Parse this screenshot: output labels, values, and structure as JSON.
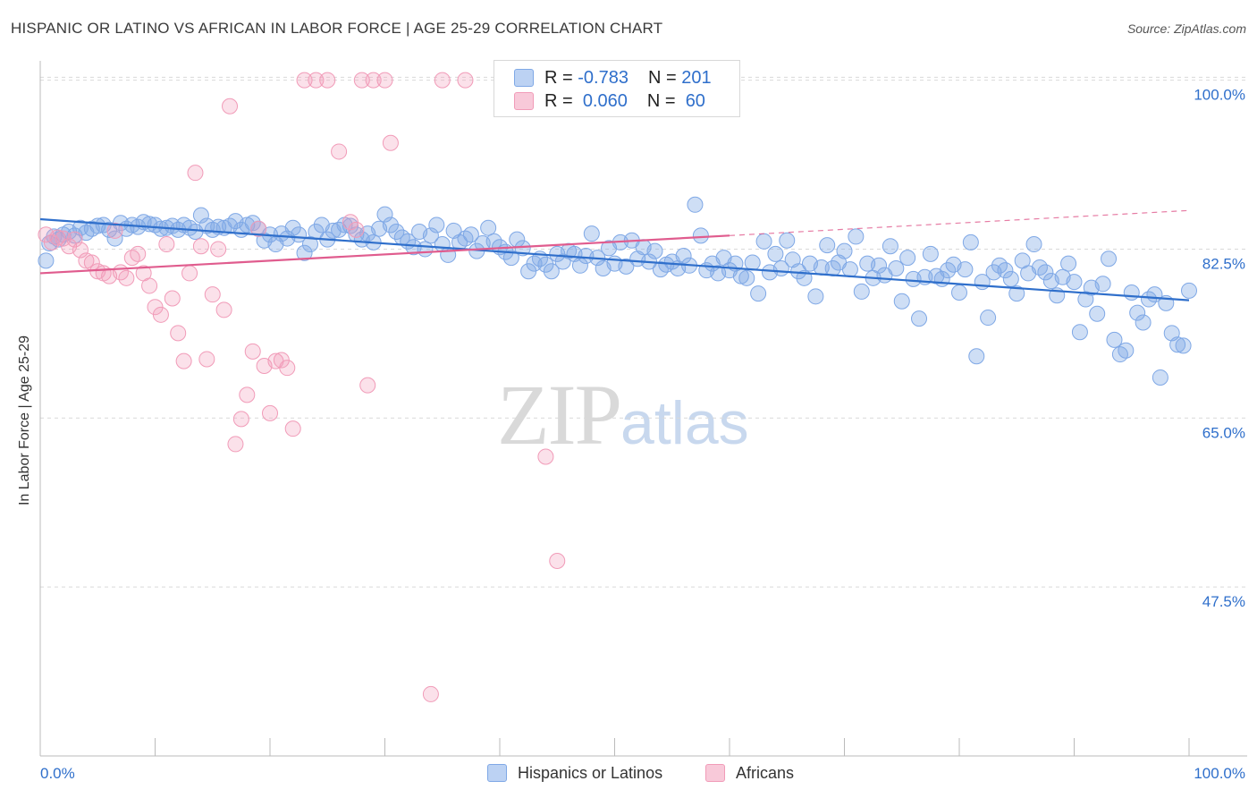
{
  "header": {
    "title": "HISPANIC OR LATINO VS AFRICAN IN LABOR FORCE | AGE 25-29 CORRELATION CHART",
    "source": "Source: ZipAtlas.com"
  },
  "watermark": {
    "zip": "ZIP",
    "atlas": "atlas"
  },
  "legend": {
    "hispanic": {
      "r_label": "R =",
      "r_value": "-0.783",
      "n_label": "N =",
      "n_value": "201",
      "color": "#7fa8e6"
    },
    "african": {
      "r_label": "R =",
      "r_value": "0.060",
      "n_label": "N =",
      "n_value": "60",
      "color": "#f19bb8"
    }
  },
  "bottom_legend": {
    "hispanic": "Hispanics or Latinos",
    "african": "Africans"
  },
  "chart_data": {
    "type": "scatter",
    "title": "HISPANIC OR LATINO VS AFRICAN IN LABOR FORCE | AGE 25-29 CORRELATION CHART",
    "xlabel": "",
    "ylabel": "In Labor Force | Age 25-29",
    "xlim": [
      0,
      100
    ],
    "ylim": [
      30,
      102
    ],
    "x_tick_labels": [
      "0.0%",
      "100.0%"
    ],
    "y_ticks": [
      47.5,
      65.0,
      82.5,
      100.0
    ],
    "y_tick_labels": [
      "47.5%",
      "65.0%",
      "82.5%",
      "100.0%"
    ],
    "grid": true,
    "legend_position": "top-center",
    "series": [
      {
        "name": "Hispanics or Latinos",
        "color": "#7fa8e6",
        "line_color": "#2f6fcb",
        "trend": {
          "x": [
            0,
            100
          ],
          "y": [
            85.6,
            77.2
          ]
        },
        "points": [
          [
            0.5,
            81.3
          ],
          [
            0.8,
            83.1
          ],
          [
            1.2,
            83.8
          ],
          [
            1.6,
            83.5
          ],
          [
            2.0,
            84.0
          ],
          [
            2.5,
            84.3
          ],
          [
            3.0,
            83.9
          ],
          [
            3.5,
            84.7
          ],
          [
            4.0,
            84.2
          ],
          [
            4.5,
            84.6
          ],
          [
            5.0,
            84.9
          ],
          [
            5.5,
            85.0
          ],
          [
            6.0,
            84.5
          ],
          [
            6.5,
            83.6
          ],
          [
            7.0,
            85.2
          ],
          [
            7.5,
            84.6
          ],
          [
            8.0,
            85.0
          ],
          [
            8.5,
            84.8
          ],
          [
            9.0,
            85.3
          ],
          [
            9.5,
            85.1
          ],
          [
            10.0,
            85.0
          ],
          [
            10.5,
            84.6
          ],
          [
            11.0,
            84.7
          ],
          [
            11.5,
            84.9
          ],
          [
            12.0,
            84.5
          ],
          [
            12.5,
            85.0
          ],
          [
            13.0,
            84.7
          ],
          [
            13.5,
            84.3
          ],
          [
            14.0,
            86.0
          ],
          [
            14.5,
            84.9
          ],
          [
            15.0,
            84.5
          ],
          [
            15.5,
            84.8
          ],
          [
            16.0,
            84.7
          ],
          [
            16.5,
            84.9
          ],
          [
            17.0,
            85.4
          ],
          [
            17.5,
            84.5
          ],
          [
            18.0,
            85.0
          ],
          [
            18.5,
            85.2
          ],
          [
            19.0,
            84.6
          ],
          [
            19.5,
            83.4
          ],
          [
            20.0,
            84.0
          ],
          [
            20.5,
            83.0
          ],
          [
            21.0,
            84.1
          ],
          [
            21.5,
            83.6
          ],
          [
            22.0,
            84.7
          ],
          [
            22.5,
            84.0
          ],
          [
            23.0,
            82.1
          ],
          [
            23.5,
            83.0
          ],
          [
            24.0,
            84.3
          ],
          [
            24.5,
            85.0
          ],
          [
            25.0,
            83.5
          ],
          [
            25.5,
            84.4
          ],
          [
            26.0,
            84.5
          ],
          [
            26.5,
            85.0
          ],
          [
            27.0,
            84.9
          ],
          [
            27.5,
            84.0
          ],
          [
            28.0,
            83.5
          ],
          [
            28.5,
            84.1
          ],
          [
            29.0,
            83.2
          ],
          [
            29.5,
            84.6
          ],
          [
            30.0,
            86.1
          ],
          [
            30.5,
            85.0
          ],
          [
            31.0,
            84.3
          ],
          [
            31.5,
            83.7
          ],
          [
            32.0,
            83.3
          ],
          [
            32.5,
            82.7
          ],
          [
            33.0,
            84.3
          ],
          [
            33.5,
            82.5
          ],
          [
            34.0,
            83.9
          ],
          [
            34.5,
            85.0
          ],
          [
            35.0,
            83.0
          ],
          [
            35.5,
            81.9
          ],
          [
            36.0,
            84.4
          ],
          [
            36.5,
            83.2
          ],
          [
            37.0,
            83.6
          ],
          [
            37.5,
            84.0
          ],
          [
            38.0,
            82.3
          ],
          [
            38.5,
            83.1
          ],
          [
            39.0,
            84.7
          ],
          [
            39.5,
            83.3
          ],
          [
            40.0,
            82.7
          ],
          [
            40.5,
            82.2
          ],
          [
            41.0,
            81.6
          ],
          [
            41.5,
            83.5
          ],
          [
            42.0,
            82.6
          ],
          [
            42.5,
            80.2
          ],
          [
            43.0,
            81.0
          ],
          [
            43.5,
            81.5
          ],
          [
            44.0,
            80.9
          ],
          [
            44.5,
            80.2
          ],
          [
            45.0,
            82.0
          ],
          [
            45.5,
            81.2
          ],
          [
            46.0,
            82.3
          ],
          [
            46.5,
            82.0
          ],
          [
            47.0,
            80.8
          ],
          [
            47.5,
            81.8
          ],
          [
            48.0,
            84.1
          ],
          [
            48.5,
            81.6
          ],
          [
            49.0,
            80.5
          ],
          [
            49.5,
            82.6
          ],
          [
            50.0,
            81.0
          ],
          [
            50.5,
            83.2
          ],
          [
            51.0,
            80.7
          ],
          [
            51.5,
            83.4
          ],
          [
            52.0,
            81.5
          ],
          [
            52.5,
            82.7
          ],
          [
            53.0,
            81.2
          ],
          [
            53.5,
            82.3
          ],
          [
            54.0,
            80.4
          ],
          [
            54.5,
            80.9
          ],
          [
            55.0,
            81.2
          ],
          [
            55.5,
            80.5
          ],
          [
            56.0,
            81.8
          ],
          [
            56.5,
            80.8
          ],
          [
            57.0,
            87.1
          ],
          [
            57.5,
            83.9
          ],
          [
            58.0,
            80.3
          ],
          [
            58.5,
            81.0
          ],
          [
            59.0,
            80.0
          ],
          [
            59.5,
            81.6
          ],
          [
            60.0,
            80.3
          ],
          [
            60.5,
            81.0
          ],
          [
            61.0,
            79.7
          ],
          [
            61.5,
            79.5
          ],
          [
            62.0,
            81.1
          ],
          [
            62.5,
            77.9
          ],
          [
            63.0,
            83.3
          ],
          [
            63.5,
            80.1
          ],
          [
            64.0,
            82.0
          ],
          [
            64.5,
            80.5
          ],
          [
            65.0,
            83.4
          ],
          [
            65.5,
            81.4
          ],
          [
            66.0,
            80.2
          ],
          [
            66.5,
            79.5
          ],
          [
            67.0,
            81.0
          ],
          [
            67.5,
            77.6
          ],
          [
            68.0,
            80.6
          ],
          [
            68.5,
            82.9
          ],
          [
            69.0,
            80.5
          ],
          [
            69.5,
            81.1
          ],
          [
            70.0,
            82.3
          ],
          [
            70.5,
            80.4
          ],
          [
            71.0,
            83.8
          ],
          [
            71.5,
            78.1
          ],
          [
            72.0,
            81.0
          ],
          [
            72.5,
            79.5
          ],
          [
            73.0,
            80.8
          ],
          [
            73.5,
            79.8
          ],
          [
            74.0,
            82.8
          ],
          [
            74.5,
            80.5
          ],
          [
            75.0,
            77.1
          ],
          [
            75.5,
            81.6
          ],
          [
            76.0,
            79.4
          ],
          [
            76.5,
            75.3
          ],
          [
            77.0,
            79.6
          ],
          [
            77.5,
            82.0
          ],
          [
            78.0,
            79.7
          ],
          [
            78.5,
            79.4
          ],
          [
            79.0,
            80.3
          ],
          [
            79.5,
            80.9
          ],
          [
            80.0,
            78.0
          ],
          [
            80.5,
            80.4
          ],
          [
            81.0,
            83.2
          ],
          [
            81.5,
            71.4
          ],
          [
            82.0,
            79.1
          ],
          [
            82.5,
            75.4
          ],
          [
            83.0,
            80.1
          ],
          [
            83.5,
            80.8
          ],
          [
            84.0,
            80.3
          ],
          [
            84.5,
            79.4
          ],
          [
            85.0,
            77.9
          ],
          [
            85.5,
            81.3
          ],
          [
            86.0,
            80.0
          ],
          [
            86.5,
            83.0
          ],
          [
            87.0,
            80.6
          ],
          [
            87.5,
            80.1
          ],
          [
            88.0,
            79.2
          ],
          [
            88.5,
            77.7
          ],
          [
            89.0,
            79.6
          ],
          [
            89.5,
            81.0
          ],
          [
            90.0,
            79.1
          ],
          [
            90.5,
            73.9
          ],
          [
            91.0,
            77.3
          ],
          [
            91.5,
            78.5
          ],
          [
            92.0,
            75.8
          ],
          [
            92.5,
            78.9
          ],
          [
            93.0,
            81.5
          ],
          [
            93.5,
            73.1
          ],
          [
            94.0,
            71.6
          ],
          [
            94.5,
            72.0
          ],
          [
            95.0,
            78.0
          ],
          [
            95.5,
            75.9
          ],
          [
            96.0,
            74.9
          ],
          [
            96.5,
            77.3
          ],
          [
            97.0,
            77.8
          ],
          [
            97.5,
            69.2
          ],
          [
            98.0,
            76.9
          ],
          [
            98.5,
            73.8
          ],
          [
            99.0,
            72.6
          ],
          [
            99.5,
            72.5
          ],
          [
            100.0,
            78.2
          ]
        ]
      },
      {
        "name": "Africans",
        "color": "#f19bb8",
        "line_color": "#e05c8e",
        "trend": {
          "x": [
            0,
            60
          ],
          "y": [
            80.0,
            83.9
          ]
        },
        "trend_ext": {
          "x": [
            60,
            100
          ],
          "y": [
            83.9,
            86.5
          ]
        },
        "points": [
          [
            0.5,
            84.0
          ],
          [
            1.0,
            83.2
          ],
          [
            1.5,
            83.7
          ],
          [
            2.0,
            83.6
          ],
          [
            2.5,
            82.8
          ],
          [
            3.0,
            83.5
          ],
          [
            3.5,
            82.4
          ],
          [
            4.0,
            81.3
          ],
          [
            4.5,
            81.1
          ],
          [
            5.0,
            80.2
          ],
          [
            5.5,
            80.0
          ],
          [
            6.0,
            79.7
          ],
          [
            6.5,
            84.4
          ],
          [
            7.0,
            80.1
          ],
          [
            7.5,
            79.5
          ],
          [
            8.0,
            81.6
          ],
          [
            8.5,
            82.0
          ],
          [
            9.0,
            80.0
          ],
          [
            9.5,
            78.7
          ],
          [
            10.0,
            76.5
          ],
          [
            10.5,
            75.7
          ],
          [
            11.0,
            83.0
          ],
          [
            11.5,
            77.4
          ],
          [
            12.0,
            73.8
          ],
          [
            12.5,
            70.9
          ],
          [
            13.0,
            80.0
          ],
          [
            13.5,
            90.4
          ],
          [
            14.0,
            82.8
          ],
          [
            14.5,
            71.1
          ],
          [
            15.0,
            77.8
          ],
          [
            15.5,
            82.5
          ],
          [
            16.0,
            76.2
          ],
          [
            16.5,
            97.3
          ],
          [
            17.0,
            62.3
          ],
          [
            17.5,
            64.9
          ],
          [
            18.0,
            67.4
          ],
          [
            18.5,
            71.9
          ],
          [
            19.0,
            84.6
          ],
          [
            19.5,
            70.4
          ],
          [
            20.0,
            65.5
          ],
          [
            20.5,
            70.9
          ],
          [
            21.0,
            71.0
          ],
          [
            21.5,
            70.2
          ],
          [
            22.0,
            63.9
          ],
          [
            23.0,
            100.0
          ],
          [
            24.0,
            100.0
          ],
          [
            25.0,
            100.0
          ],
          [
            26.0,
            92.6
          ],
          [
            27.0,
            85.3
          ],
          [
            27.5,
            84.5
          ],
          [
            28.0,
            100.0
          ],
          [
            28.5,
            68.4
          ],
          [
            29.0,
            100.0
          ],
          [
            30.0,
            100.0
          ],
          [
            30.5,
            93.5
          ],
          [
            34.0,
            36.4
          ],
          [
            35.0,
            100.0
          ],
          [
            37.0,
            100.0
          ],
          [
            44.0,
            61.0
          ],
          [
            45.0,
            50.2
          ]
        ]
      }
    ]
  }
}
